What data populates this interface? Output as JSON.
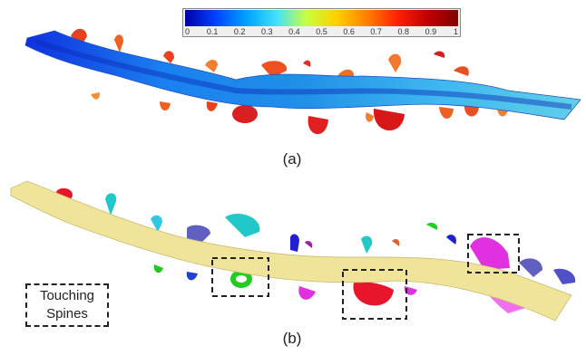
{
  "colorbar": {
    "colors": [
      "#0000a8",
      "#0040ff",
      "#00a0ff",
      "#40e0ff",
      "#c8ff40",
      "#ffd000",
      "#ff8000",
      "#ff2000",
      "#c00000",
      "#800000"
    ],
    "ticks": [
      "0",
      "0.1",
      "0.2",
      "0.3",
      "0.4",
      "0.5",
      "0.6",
      "0.7",
      "0.8",
      "0.9",
      "1"
    ]
  },
  "panels": {
    "a_label": "(a)",
    "b_label": "(b)"
  },
  "callout": {
    "line1": "Touching",
    "line2": "Spines"
  },
  "colors": {
    "dendrite_b": "#efe49a",
    "spine_green": "#22cc22",
    "spine_red": "#e8162a",
    "spine_magenta": "#e030e0",
    "spine_cyan": "#20c8c8",
    "spine_purple": "#6060c0"
  }
}
